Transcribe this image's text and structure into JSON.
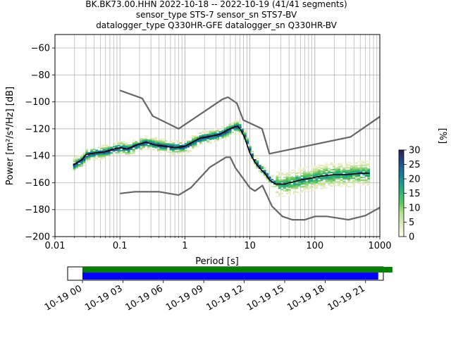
{
  "title": {
    "line1": "BK.BK73.00.HHN   2022-10-18 -- 2022-10-19  (41/41 segments)",
    "line2": "sensor_type STS-7 sensor_sn STS7-BV",
    "line3": "datalogger_type Q330HR-GFE datalogger_sn Q330HR-BV"
  },
  "chart_data": [
    {
      "type": "line",
      "title": "BK.BK73.00.HHN   2022-10-18 -- 2022-10-19  (41/41 segments)",
      "xlabel": "Period [s]",
      "ylabel": "Power [m²/s⁴/Hz] [dB]",
      "xscale": "log",
      "xlim": [
        0.01,
        1000
      ],
      "ylim": [
        -200,
        -50
      ],
      "grid": true,
      "x_ticks": [
        "0.01",
        "0.1",
        "1",
        "10",
        "100",
        "1000"
      ],
      "y_ticks": [
        "−60",
        "−80",
        "−100",
        "−120",
        "−140",
        "−160",
        "−180",
        "−200"
      ],
      "series": [
        {
          "role": "mode",
          "color": "#000000",
          "x": [
            0.019,
            0.022,
            0.026,
            0.03,
            0.04,
            0.06,
            0.08,
            0.1,
            0.13,
            0.18,
            0.25,
            0.35,
            0.5,
            0.7,
            1.0,
            1.3,
            1.7,
            2.2,
            2.8,
            3.5,
            4.5,
            5.5,
            6.5,
            7.5,
            8.5,
            10,
            12,
            14,
            17,
            20,
            25,
            30,
            35,
            40,
            50,
            60,
            80,
            100,
            130,
            200,
            300,
            500,
            700
          ],
          "y": [
            -147,
            -145,
            -143,
            -139,
            -138,
            -137,
            -135,
            -134,
            -135,
            -132,
            -130,
            -132,
            -133,
            -134,
            -133,
            -130,
            -127,
            -126,
            -125,
            -124,
            -121,
            -119,
            -118,
            -122,
            -128,
            -138,
            -145,
            -149,
            -153,
            -158,
            -161,
            -161,
            -161,
            -160,
            -159,
            -158,
            -157,
            -156,
            -155,
            -154,
            -154,
            -153,
            -153
          ]
        },
        {
          "role": "NHNM",
          "color": "#666666",
          "x": [
            0.1,
            0.22,
            0.32,
            0.8,
            3.8,
            4.6,
            6.3,
            7.9,
            15.4,
            20,
            354.8,
            1000
          ],
          "y": [
            -91.5,
            -97.4,
            -110.5,
            -120,
            -98,
            -96.5,
            -101,
            -113.5,
            -120,
            -138.5,
            -126,
            -111
          ]
        },
        {
          "role": "NLNM",
          "color": "#666666",
          "x": [
            0.1,
            0.17,
            0.4,
            0.8,
            1.24,
            2.4,
            4.3,
            5.0,
            6.0,
            10.0,
            12.0,
            15.6,
            21.9,
            31.6,
            45,
            70,
            101,
            154,
            328,
            600,
            1000
          ],
          "y": [
            -168,
            -166.7,
            -166.7,
            -169.2,
            -163.7,
            -148.6,
            -141.1,
            -141.1,
            -149.0,
            -163.8,
            -166.2,
            -162.1,
            -177.5,
            -185.0,
            -187.5,
            -187.5,
            -185.0,
            -185.0,
            -187.5,
            -184.4,
            -178.4
          ]
        }
      ],
      "colorbar": {
        "label": "[%]",
        "ticks": [
          "0",
          "5",
          "10",
          "15",
          "20",
          "25",
          "30"
        ],
        "range": [
          0,
          30
        ]
      }
    },
    {
      "type": "bar",
      "title": "",
      "x_ticks": [
        "10-19 00",
        "10-19 03",
        "10-19 06",
        "10-19 09",
        "10-19 12",
        "10-19 15",
        "10-19 18",
        "10-19 21"
      ],
      "series": [
        {
          "name": "",
          "color": "#008000",
          "start": "10-19 00:00",
          "end": "10-19 22:00"
        },
        {
          "name": "",
          "color": "#0000ff",
          "start": "10-19 00:00",
          "end": "10-19 21:00"
        }
      ]
    }
  ]
}
